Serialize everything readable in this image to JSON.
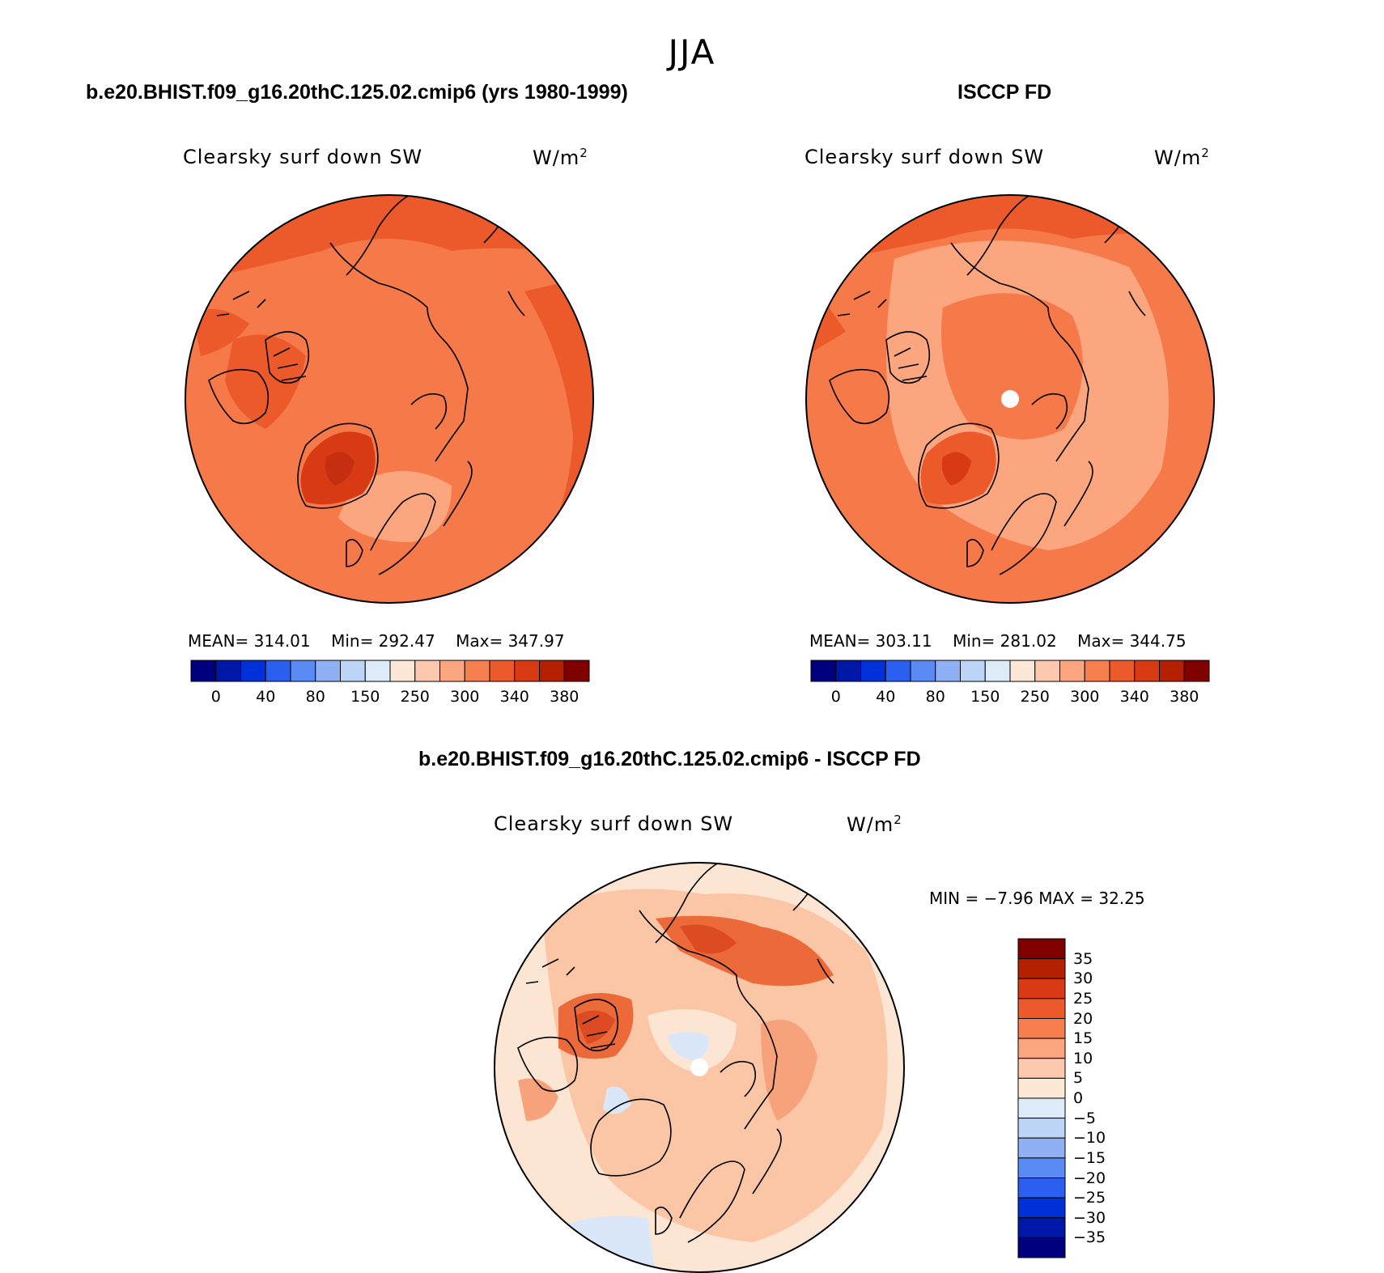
{
  "figure": {
    "season": "JJA"
  },
  "panels": [
    {
      "title": "b.e20.BHIST.f09_g16.20thC.125.02.cmip6 (yrs 1980-1999)",
      "variable": "Clearsky surf down SW",
      "units": "W/m",
      "units_sup": "2",
      "stats": {
        "mean": "MEAN= 314.01",
        "min": "Min= 292.47",
        "max": "Max= 347.97"
      }
    },
    {
      "title": "ISCCP FD",
      "variable": "Clearsky surf down SW",
      "units": "W/m",
      "units_sup": "2",
      "stats": {
        "mean": "MEAN= 303.11",
        "min": "Min= 281.02",
        "max": "Max= 344.75"
      }
    },
    {
      "title": "b.e20.BHIST.f09_g16.20thC.125.02.cmip6 - ISCCP FD",
      "variable": "Clearsky surf down SW",
      "units": "W/m",
      "units_sup": "2",
      "stats": {
        "minmax": "MIN =   −7.96 MAX =   32.25"
      }
    }
  ],
  "colorbar_abs": {
    "colors": [
      "#00007f",
      "#0018a8",
      "#0030d8",
      "#2a5ff0",
      "#5a8af4",
      "#8fb0f5",
      "#bcd4f6",
      "#dcebf7",
      "#fde7d6",
      "#fdc9ae",
      "#fba67f",
      "#f77e4e",
      "#ec5a2c",
      "#d83a14",
      "#b42000",
      "#800000"
    ],
    "tick_labels": [
      "0",
      "40",
      "80",
      "150",
      "250",
      "300",
      "340",
      "380"
    ]
  },
  "colorbar_diff": {
    "colors": [
      "#00007f",
      "#0018a8",
      "#0030d8",
      "#2a5ff0",
      "#5a8af4",
      "#8fb0f5",
      "#bcd4f6",
      "#dcebf7",
      "#fde7d6",
      "#fdc9ae",
      "#fba67f",
      "#f77e4e",
      "#ec5a2c",
      "#d83a14",
      "#b42000",
      "#800000"
    ],
    "tick_labels": [
      "35",
      "30",
      "25",
      "20",
      "15",
      "10",
      "5",
      "0",
      "−5",
      "−10",
      "−15",
      "−20",
      "−25",
      "−30",
      "−35"
    ]
  },
  "map_fields": {
    "panel1": {
      "background": "#f6794a",
      "regions": [
        "#f26a3c",
        "#fa9a6c",
        "#e9552c",
        "#d94822",
        "#f6794a"
      ]
    },
    "panel2": {
      "background": "#f6794a",
      "regions": [
        "#fba27a",
        "#f6794a",
        "#e9552c",
        "#d94822",
        "#ffffff"
      ]
    },
    "panel3": {
      "background": "#fde5d3",
      "regions": [
        "#fbc6a6",
        "#f7a27b",
        "#ec6a3a",
        "#dc4b21",
        "#d9e7f8",
        "#ffffff"
      ]
    }
  }
}
